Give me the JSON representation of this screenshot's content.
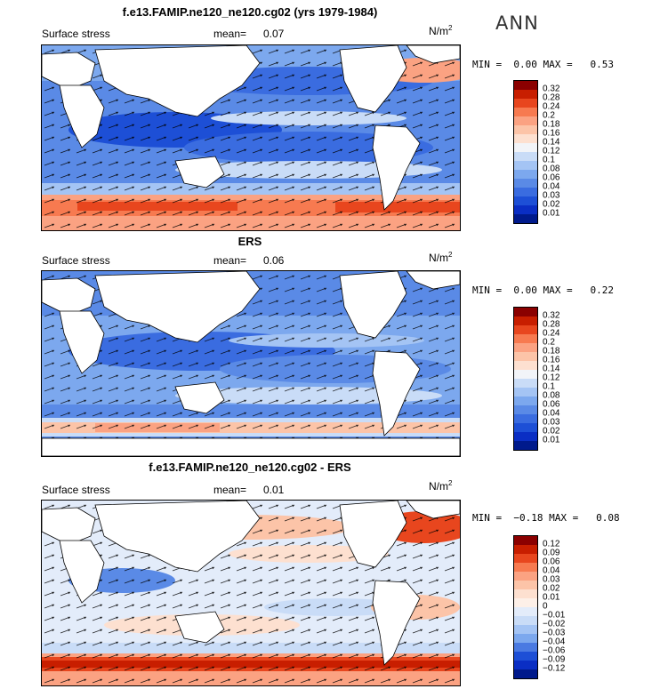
{
  "annual_label": "ANN",
  "panels": [
    {
      "title": "f.e13.FAMIP.ne120_ne120.cg02 (yrs 1979-1984)",
      "left_label": "Surface stress",
      "mean_label": "mean=",
      "mean_value": "0.07",
      "units_base": "N/m",
      "units_exp": "2",
      "min_label": "MIN =",
      "min_value": "0.00",
      "max_label": "MAX =",
      "max_value": "0.53",
      "levels": [
        "0.32",
        "0.28",
        "0.24",
        "0.2",
        "0.18",
        "0.16",
        "0.14",
        "0.12",
        "0.1",
        "0.08",
        "0.06",
        "0.04",
        "0.03",
        "0.02",
        "0.01"
      ],
      "colors": [
        "#8b0000",
        "#c81e00",
        "#e8461e",
        "#f77a50",
        "#fba282",
        "#fcc4a8",
        "#fde0d0",
        "#f2f4f8",
        "#c9dcf7",
        "#a4c4f4",
        "#7ca8ee",
        "#5a8ae6",
        "#3a6ce0",
        "#1d4fd6",
        "#0a2ec4",
        "#001a8c"
      ]
    },
    {
      "title": "ERS",
      "left_label": "Surface stress",
      "mean_label": "mean=",
      "mean_value": "0.06",
      "units_base": "N/m",
      "units_exp": "2",
      "min_label": "MIN =",
      "min_value": "0.00",
      "max_label": "MAX =",
      "max_value": "0.22",
      "levels": [
        "0.32",
        "0.28",
        "0.24",
        "0.2",
        "0.18",
        "0.16",
        "0.14",
        "0.12",
        "0.1",
        "0.08",
        "0.06",
        "0.04",
        "0.03",
        "0.02",
        "0.01"
      ],
      "colors": [
        "#8b0000",
        "#c81e00",
        "#e8461e",
        "#f77a50",
        "#fba282",
        "#fcc4a8",
        "#fde0d0",
        "#f2f4f8",
        "#c9dcf7",
        "#a4c4f4",
        "#7ca8ee",
        "#5a8ae6",
        "#3a6ce0",
        "#1d4fd6",
        "#0a2ec4",
        "#001a8c"
      ]
    },
    {
      "title": "f.e13.FAMIP.ne120_ne120.cg02 - ERS",
      "left_label": "Surface stress",
      "mean_label": "mean=",
      "mean_value": "0.01",
      "units_base": "N/m",
      "units_exp": "2",
      "min_label": "MIN =",
      "min_value": "−0.18",
      "max_label": "MAX =",
      "max_value": "0.08",
      "levels": [
        "0.12",
        "0.09",
        "0.06",
        "0.04",
        "0.03",
        "0.02",
        "0.01",
        "0",
        "−0.01",
        "−0.02",
        "−0.03",
        "−0.04",
        "−0.06",
        "−0.09",
        "−0.12"
      ],
      "colors": [
        "#8b0000",
        "#c81e00",
        "#e8461e",
        "#f77a50",
        "#fba282",
        "#fcc4a8",
        "#fde0d0",
        "#fdf0e8",
        "#e3ecfa",
        "#c9dcf7",
        "#a4c4f4",
        "#7ca8ee",
        "#4a7ae2",
        "#1d4fd6",
        "#0a2ec4",
        "#001a8c"
      ]
    }
  ]
}
